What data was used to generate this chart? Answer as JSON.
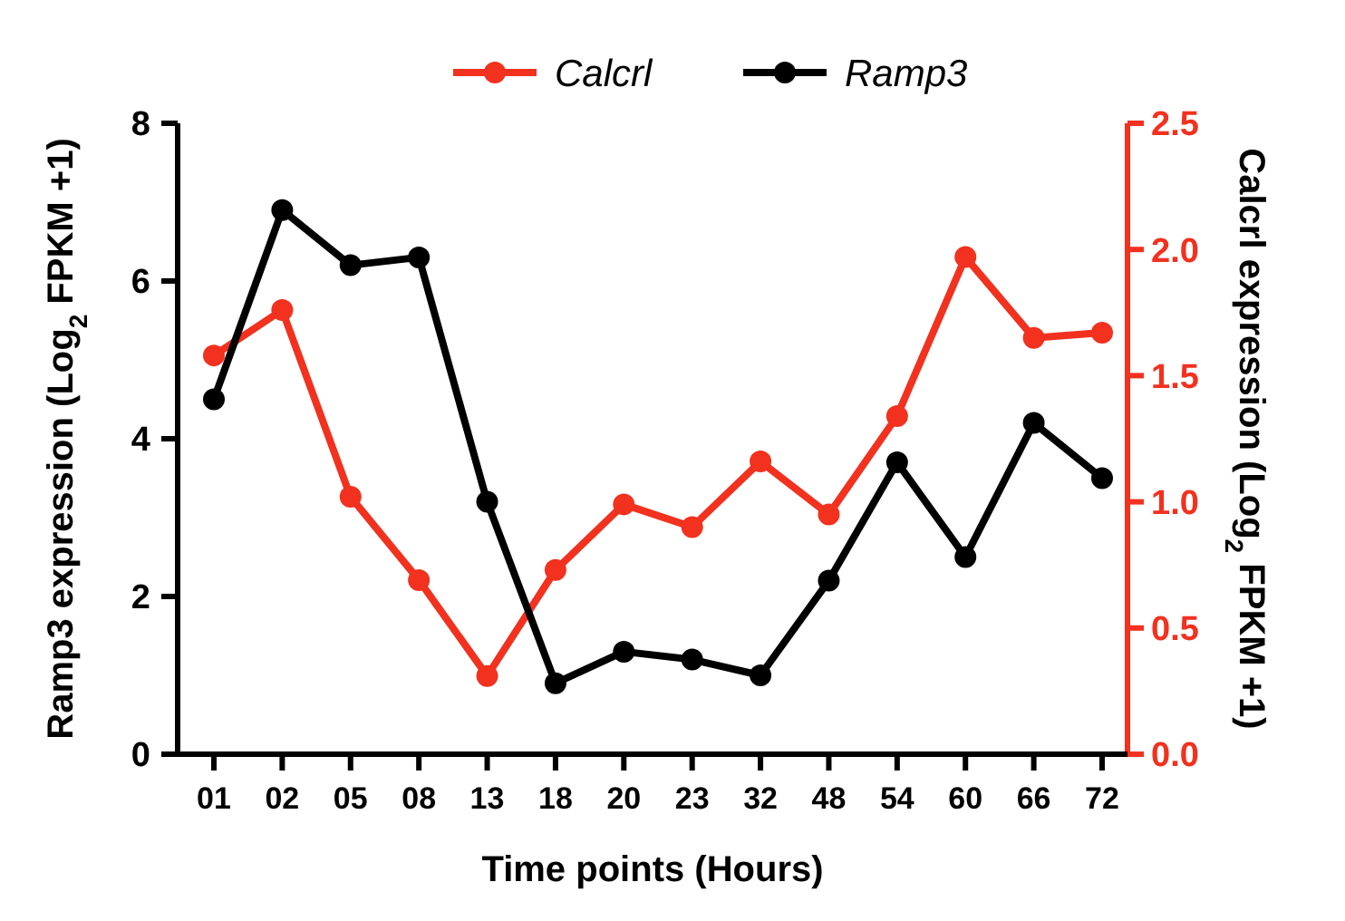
{
  "chart_data": {
    "type": "line",
    "xlabel": "Time points (Hours)",
    "ylabel": "Ramp3 expression (Log$_{2}$ FPKM +1)",
    "y2label": "Calcrl expression (Log$_{2}$ FPKM +1)",
    "categories": [
      "01",
      "02",
      "05",
      "08",
      "13",
      "18",
      "20",
      "23",
      "32",
      "48",
      "54",
      "60",
      "66",
      "72"
    ],
    "series": [
      {
        "name": "Calcrl",
        "color": "#f2311f",
        "axis": "y2",
        "values": [
          1.58,
          1.76,
          1.02,
          0.69,
          0.31,
          0.73,
          0.99,
          0.9,
          1.16,
          0.95,
          1.34,
          1.97,
          1.65,
          1.67
        ]
      },
      {
        "name": "Ramp3",
        "color": "#000000",
        "values": [
          4.5,
          6.9,
          6.2,
          6.3,
          3.2,
          0.9,
          1.3,
          1.2,
          1.0,
          2.2,
          3.7,
          2.5,
          4.2,
          3.5
        ]
      }
    ],
    "ylim": [
      0,
      8
    ],
    "yticks": [
      0,
      2,
      4,
      6,
      8
    ],
    "y2lim": [
      0,
      2.5
    ],
    "y2ticks": [
      {
        "value": 0,
        "label": "0.0"
      },
      {
        "value": 0.5,
        "label": "0.5"
      },
      {
        "value": 1,
        "label": "1.0"
      },
      {
        "value": 1.5,
        "label": "1.5"
      },
      {
        "value": 2,
        "label": "2.0"
      },
      {
        "value": 2.5,
        "label": "2.5"
      }
    ],
    "marker": "circle",
    "line_style": "solid",
    "legend": "top",
    "grid": false
  }
}
